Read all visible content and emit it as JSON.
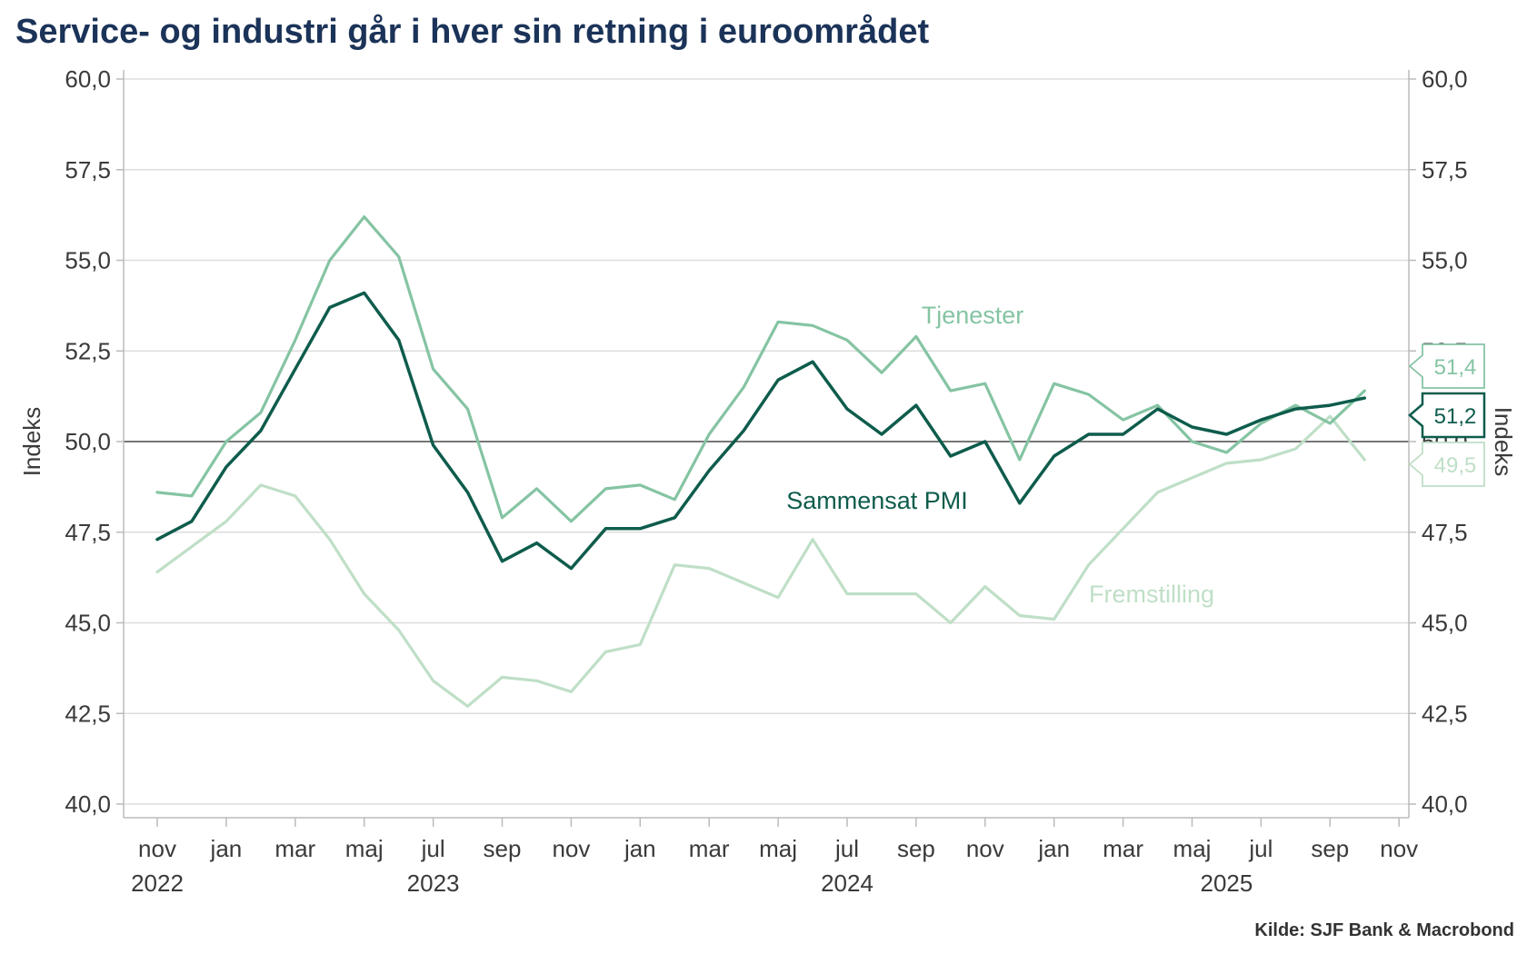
{
  "title": "Service- og industri går i hver sin retning i euroområdet",
  "source": "Kilde: SJF Bank & Macrobond",
  "colors": {
    "services": "#85c4a3",
    "composite": "#0e5c4c",
    "manufacturing": "#bfdfc7",
    "grid": "#dddddd",
    "axis": "#bbbbbb",
    "reference": "#777777"
  },
  "chart_data": {
    "type": "line",
    "title": "Service- og industri går i hver sin retning i euroområdet",
    "ylabel_left": "Indeks",
    "ylabel_right": "Indeks",
    "ylim": [
      40,
      60
    ],
    "y_ticks": [
      "40,0",
      "42,5",
      "45,0",
      "47,5",
      "50,0",
      "52,5",
      "55,0",
      "57,5",
      "60,0"
    ],
    "x_tick_months": [
      "nov",
      "jan",
      "mar",
      "maj",
      "jul",
      "sep",
      "nov",
      "jan",
      "mar",
      "maj",
      "jul",
      "sep",
      "nov",
      "jan",
      "mar",
      "maj",
      "jul",
      "sep",
      "nov"
    ],
    "x_tick_years": [
      {
        "label": "2022",
        "month_index": 0
      },
      {
        "label": "2023",
        "month_index": 8
      },
      {
        "label": "2024",
        "month_index": 20
      },
      {
        "label": "2025",
        "month_index": 31
      }
    ],
    "x": [
      "2022-11",
      "2022-12",
      "2023-01",
      "2023-02",
      "2023-03",
      "2023-04",
      "2023-05",
      "2023-06",
      "2023-07",
      "2023-08",
      "2023-09",
      "2023-10",
      "2023-11",
      "2023-12",
      "2024-01",
      "2024-02",
      "2024-03",
      "2024-04",
      "2024-05",
      "2024-06",
      "2024-07",
      "2024-08",
      "2024-09",
      "2024-10",
      "2024-11",
      "2024-12",
      "2025-01",
      "2025-02",
      "2025-03",
      "2025-04",
      "2025-05",
      "2025-06",
      "2025-07",
      "2025-08",
      "2025-09",
      "2025-10"
    ],
    "reference_line": 50,
    "series": [
      {
        "name": "Tjenester",
        "color_key": "services",
        "end_label": "51,4",
        "values": [
          48.6,
          48.5,
          50.0,
          50.8,
          52.8,
          55.0,
          56.2,
          55.1,
          52.0,
          50.9,
          47.9,
          48.7,
          47.8,
          48.7,
          48.8,
          48.4,
          50.2,
          51.5,
          53.3,
          53.2,
          52.8,
          51.9,
          52.9,
          51.4,
          51.6,
          49.5,
          51.6,
          51.3,
          50.6,
          51.0,
          50.0,
          49.7,
          50.5,
          51.0,
          50.5,
          51.4
        ]
      },
      {
        "name": "Sammensat PMI",
        "color_key": "composite",
        "end_label": "51,2",
        "values": [
          47.3,
          47.8,
          49.3,
          50.3,
          52.0,
          53.7,
          54.1,
          52.8,
          49.9,
          48.6,
          46.7,
          47.2,
          46.5,
          47.6,
          47.6,
          47.9,
          49.2,
          50.3,
          51.7,
          52.2,
          50.9,
          50.2,
          51.0,
          49.6,
          50.0,
          48.3,
          49.6,
          50.2,
          50.2,
          50.9,
          50.4,
          50.2,
          50.6,
          50.9,
          51.0,
          51.2
        ]
      },
      {
        "name": "Fremstilling",
        "color_key": "manufacturing",
        "end_label": "49,5",
        "values": [
          46.4,
          47.1,
          47.8,
          48.8,
          48.5,
          47.3,
          45.8,
          44.8,
          43.4,
          42.7,
          43.5,
          43.4,
          43.1,
          44.2,
          44.4,
          46.6,
          46.5,
          46.1,
          45.7,
          47.3,
          45.8,
          45.8,
          45.8,
          45.0,
          46.0,
          45.2,
          45.1,
          46.6,
          47.6,
          48.6,
          49.0,
          49.4,
          49.5,
          49.8,
          50.7,
          49.5
        ]
      }
    ],
    "legend": "inline-labels"
  }
}
